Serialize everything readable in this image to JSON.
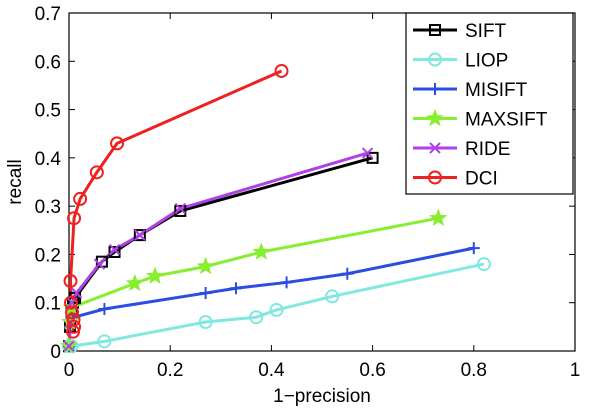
{
  "chart_data": {
    "type": "line",
    "xlabel": "1−precision",
    "ylabel": "recall",
    "xlim": [
      0,
      1
    ],
    "ylim": [
      0,
      0.7
    ],
    "xticks": [
      "0",
      "0.2",
      "0.4",
      "0.6",
      "0.8",
      "1"
    ],
    "xtick_values": [
      0,
      0.2,
      0.4,
      0.6,
      0.8,
      1
    ],
    "yticks": [
      "0",
      "0.1",
      "0.2",
      "0.3",
      "0.4",
      "0.5",
      "0.6",
      "0.7"
    ],
    "ytick_values": [
      0,
      0.1,
      0.2,
      0.3,
      0.4,
      0.5,
      0.6,
      0.7
    ],
    "grid": false,
    "legend_position": "top-right",
    "series": [
      {
        "name": "SIFT",
        "color": "#000000",
        "marker": "square",
        "x": [
          0.0,
          0.002,
          0.005,
          0.008,
          0.012,
          0.065,
          0.09,
          0.14,
          0.22,
          0.6
        ],
        "y": [
          0.01,
          0.05,
          0.08,
          0.1,
          0.11,
          0.185,
          0.205,
          0.24,
          0.29,
          0.4
        ]
      },
      {
        "name": "LIOP",
        "color": "#80e8e0",
        "marker": "circle",
        "x": [
          0.0,
          0.005,
          0.07,
          0.27,
          0.37,
          0.41,
          0.52,
          0.82
        ],
        "y": [
          0.01,
          0.01,
          0.02,
          0.06,
          0.07,
          0.085,
          0.113,
          0.18
        ]
      },
      {
        "name": "MISIFT",
        "color": "#2b4de0",
        "marker": "plus",
        "x": [
          0.0,
          0.002,
          0.01,
          0.07,
          0.27,
          0.33,
          0.43,
          0.55,
          0.8
        ],
        "y": [
          0.01,
          0.05,
          0.07,
          0.087,
          0.12,
          0.13,
          0.142,
          0.16,
          0.213
        ]
      },
      {
        "name": "MAXSIFT",
        "color": "#88ee30",
        "marker": "star",
        "x": [
          0.0,
          0.002,
          0.005,
          0.13,
          0.17,
          0.27,
          0.38,
          0.73
        ],
        "y": [
          0.01,
          0.06,
          0.09,
          0.14,
          0.155,
          0.175,
          0.205,
          0.275
        ]
      },
      {
        "name": "RIDE",
        "color": "#b040e8",
        "marker": "x",
        "x": [
          0.0,
          0.003,
          0.006,
          0.015,
          0.06,
          0.09,
          0.14,
          0.22,
          0.59
        ],
        "y": [
          0.01,
          0.06,
          0.1,
          0.12,
          0.18,
          0.21,
          0.24,
          0.295,
          0.41
        ]
      },
      {
        "name": "DCI",
        "color": "#ee2020",
        "marker": "circle",
        "x": [
          0.008,
          0.01,
          0.009,
          0.006,
          0.004,
          0.003,
          0.01,
          0.022,
          0.055,
          0.095,
          0.42
        ],
        "y": [
          0.04,
          0.05,
          0.065,
          0.08,
          0.1,
          0.145,
          0.275,
          0.315,
          0.37,
          0.43,
          0.58
        ]
      }
    ]
  }
}
